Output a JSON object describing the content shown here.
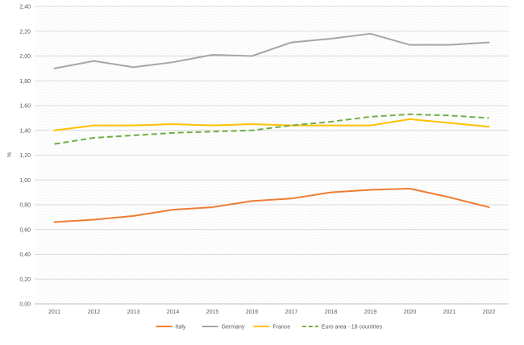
{
  "chart_data": {
    "type": "line",
    "title": "",
    "xlabel": "",
    "ylabel": "%",
    "ylim": [
      0,
      2.4
    ],
    "y_ticks": [
      "0,00",
      "0,20",
      "0,40",
      "0,60",
      "0,80",
      "1,00",
      "1,20",
      "1,40",
      "1,60",
      "1,80",
      "2,00",
      "2,20",
      "2,40"
    ],
    "categories": [
      "2011",
      "2012",
      "2013",
      "2014",
      "2015",
      "2016",
      "2017",
      "2018",
      "2019",
      "2020",
      "2021",
      "2022"
    ],
    "grid": true,
    "legend_position": "bottom",
    "series": [
      {
        "name": "Italy",
        "color": "#ED7D31",
        "style": "solid",
        "values": [
          0.66,
          0.68,
          0.71,
          0.76,
          0.78,
          0.83,
          0.85,
          0.9,
          0.92,
          0.93,
          0.86,
          0.78
        ]
      },
      {
        "name": "Germany",
        "color": "#A5A5A5",
        "style": "solid",
        "values": [
          1.9,
          1.96,
          1.91,
          1.95,
          2.01,
          2.0,
          2.11,
          2.14,
          2.18,
          2.09,
          2.09,
          2.11
        ]
      },
      {
        "name": "France",
        "color": "#FFC000",
        "style": "solid",
        "values": [
          1.4,
          1.44,
          1.44,
          1.45,
          1.44,
          1.45,
          1.44,
          1.44,
          1.44,
          1.49,
          1.46,
          1.43
        ]
      },
      {
        "name": "Euro area - 19 countries",
        "color": "#70AD47",
        "style": "dashed",
        "values": [
          1.29,
          1.34,
          1.36,
          1.38,
          1.39,
          1.4,
          1.44,
          1.47,
          1.51,
          1.53,
          1.52,
          1.5
        ]
      }
    ]
  }
}
